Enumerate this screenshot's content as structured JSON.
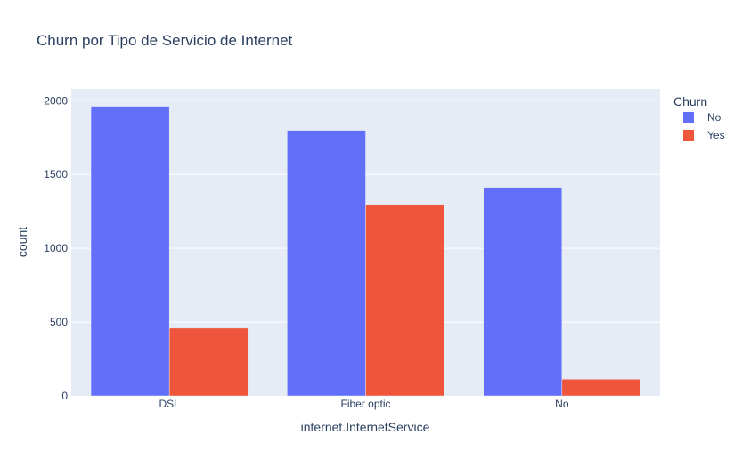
{
  "chart_data": {
    "type": "bar",
    "title": "Churn por Tipo de Servicio de Internet",
    "xlabel": "internet.InternetService",
    "ylabel": "count",
    "categories": [
      "DSL",
      "Fiber optic",
      "No"
    ],
    "series": [
      {
        "name": "No",
        "values": [
          1962,
          1799,
          1413
        ],
        "color": "#636efa"
      },
      {
        "name": "Yes",
        "values": [
          459,
          1297,
          113
        ],
        "color": "#ef553b"
      }
    ],
    "ylim": [
      0,
      2080
    ],
    "yticks": [
      0,
      500,
      1000,
      1500,
      2000
    ],
    "ytick_labels": [
      "0",
      "500",
      "1000",
      "1500",
      "2000"
    ],
    "grid": true,
    "legend": {
      "title": "Churn",
      "placement": "top-right"
    },
    "plot_background": "#e5ecf6",
    "text_color": "#2a3f5f"
  }
}
